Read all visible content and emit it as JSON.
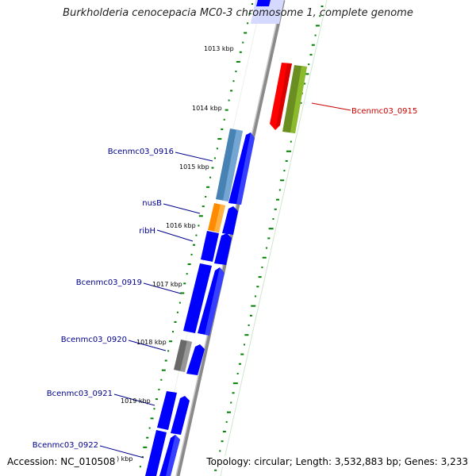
{
  "title": "Burkholderia cenocepacia MC0-3 chromosome 1, complete genome",
  "accession": "Accession: NC_010508",
  "topology": "Topology: circular; Length: 3,532,883 bp; Genes: 3,233",
  "ticks": [
    "1013 kbp",
    "1014 kbp",
    "1015 kbp",
    "1016 kbp",
    "1017 kbp",
    "1018 kbp",
    "1019 kbp",
    ") kbp"
  ],
  "genes": [
    {
      "name": "Bcenmc03_0915",
      "color": "#cc0000"
    },
    {
      "name": "Bcenmc03_0916",
      "color": "#00008b"
    },
    {
      "name": "nusB",
      "color": "#00008b"
    },
    {
      "name": "ribH",
      "color": "#00008b"
    },
    {
      "name": "Bcenmc03_0919",
      "color": "#00008b"
    },
    {
      "name": "Bcenmc03_0920",
      "color": "#00008b"
    },
    {
      "name": "Bcenmc03_0921",
      "color": "#00008b"
    },
    {
      "name": "Bcenmc03_0922",
      "color": "#00008b"
    }
  ],
  "colors": {
    "cds": "#0000ff",
    "red_feature": "#ff0000",
    "olive_feature": "#6b8e23",
    "steelblue_feature": "#4682b4",
    "orange_feature": "#ff8c00",
    "gray_feature": "#696969",
    "backbone": "#808080",
    "gc_skew": "#008000"
  }
}
